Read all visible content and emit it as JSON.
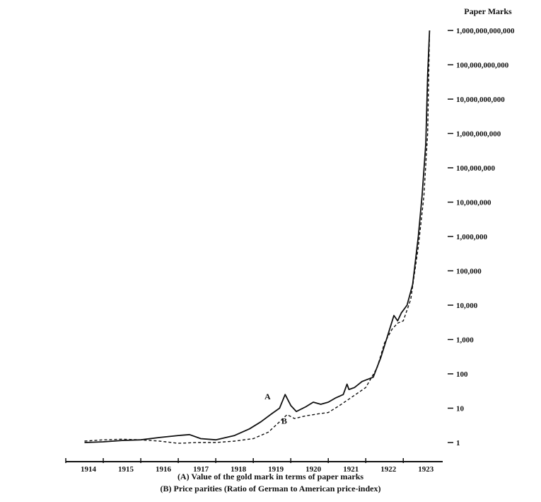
{
  "chart_data": {
    "type": "line",
    "y_scale": "log",
    "ylabel": "Paper Marks",
    "y_ticks": [
      {
        "value": 1,
        "label": "1"
      },
      {
        "value": 10,
        "label": "10"
      },
      {
        "value": 100,
        "label": "100"
      },
      {
        "value": 1000,
        "label": "1,000"
      },
      {
        "value": 10000,
        "label": "10,000"
      },
      {
        "value": 100000,
        "label": "100,000"
      },
      {
        "value": 1000000,
        "label": "1,000,000"
      },
      {
        "value": 10000000,
        "label": "10,000,000"
      },
      {
        "value": 100000000,
        "label": "100,000,000"
      },
      {
        "value": 1000000000,
        "label": "1,000,000,000"
      },
      {
        "value": 10000000000,
        "label": "10,000,000,000"
      },
      {
        "value": 100000000000,
        "label": "100,000,000,000"
      },
      {
        "value": 1000000000000,
        "label": "1,000,000,000,000"
      }
    ],
    "x_ticks": [
      {
        "value": 1914,
        "label": "1914"
      },
      {
        "value": 1915,
        "label": "1915"
      },
      {
        "value": 1916,
        "label": "1916"
      },
      {
        "value": 1917,
        "label": "1917"
      },
      {
        "value": 1918,
        "label": "1918"
      },
      {
        "value": 1919,
        "label": "1919"
      },
      {
        "value": 1920,
        "label": "1920"
      },
      {
        "value": 1921,
        "label": "1921"
      },
      {
        "value": 1922,
        "label": "1922"
      },
      {
        "value": 1923,
        "label": "1923"
      }
    ],
    "xlim": [
      1914.0,
      1923.9
    ],
    "ylim": [
      1,
      1000000000000
    ],
    "grid": false,
    "series": [
      {
        "name": "A",
        "style": "solid",
        "points": [
          [
            1914.5,
            1.0
          ],
          [
            1915.0,
            1.05
          ],
          [
            1915.5,
            1.15
          ],
          [
            1916.0,
            1.2
          ],
          [
            1916.5,
            1.4
          ],
          [
            1917.0,
            1.6
          ],
          [
            1917.3,
            1.7
          ],
          [
            1917.6,
            1.3
          ],
          [
            1918.0,
            1.2
          ],
          [
            1918.5,
            1.6
          ],
          [
            1918.9,
            2.5
          ],
          [
            1919.2,
            4
          ],
          [
            1919.5,
            7
          ],
          [
            1919.7,
            10
          ],
          [
            1919.85,
            25
          ],
          [
            1920.0,
            12
          ],
          [
            1920.15,
            8
          ],
          [
            1920.4,
            11
          ],
          [
            1920.6,
            15
          ],
          [
            1920.8,
            13
          ],
          [
            1921.0,
            15
          ],
          [
            1921.2,
            20
          ],
          [
            1921.4,
            25
          ],
          [
            1921.5,
            50
          ],
          [
            1921.55,
            35
          ],
          [
            1921.7,
            40
          ],
          [
            1921.9,
            60
          ],
          [
            1922.2,
            80
          ],
          [
            1922.4,
            300
          ],
          [
            1922.6,
            1500
          ],
          [
            1922.75,
            5000
          ],
          [
            1922.85,
            3500
          ],
          [
            1922.95,
            6000
          ],
          [
            1923.1,
            10000
          ],
          [
            1923.25,
            40000
          ],
          [
            1923.4,
            1000000
          ],
          [
            1923.5,
            15000000
          ],
          [
            1923.6,
            500000000
          ],
          [
            1923.65,
            50000000000
          ],
          [
            1923.7,
            1000000000000
          ]
        ]
      },
      {
        "name": "B",
        "style": "dashed",
        "points": [
          [
            1914.5,
            1.1
          ],
          [
            1915.0,
            1.2
          ],
          [
            1915.5,
            1.25
          ],
          [
            1916.0,
            1.2
          ],
          [
            1916.5,
            1.1
          ],
          [
            1917.0,
            0.95
          ],
          [
            1917.5,
            1.0
          ],
          [
            1918.0,
            1.0
          ],
          [
            1918.5,
            1.1
          ],
          [
            1919.0,
            1.3
          ],
          [
            1919.4,
            2
          ],
          [
            1919.7,
            4
          ],
          [
            1919.9,
            6.5
          ],
          [
            1920.1,
            5
          ],
          [
            1920.4,
            6
          ],
          [
            1920.8,
            7
          ],
          [
            1921.0,
            7.5
          ],
          [
            1921.3,
            12
          ],
          [
            1921.6,
            20
          ],
          [
            1922.0,
            40
          ],
          [
            1922.3,
            150
          ],
          [
            1922.5,
            800
          ],
          [
            1922.7,
            2000
          ],
          [
            1922.85,
            3000
          ],
          [
            1923.0,
            3500
          ],
          [
            1923.2,
            15000
          ],
          [
            1923.4,
            500000
          ],
          [
            1923.55,
            15000000
          ],
          [
            1923.65,
            1000000000
          ],
          [
            1923.7,
            1000000000000
          ]
        ]
      }
    ],
    "annotations": [
      {
        "label": "A",
        "x": 1919.3,
        "y": 18
      },
      {
        "label": "B",
        "x": 1919.75,
        "y": 3.5
      }
    ]
  },
  "captions": {
    "line_a": "(A) Value of the gold mark in terms of paper marks",
    "line_b": "(B) Price parities (Ratio of German to American price-index)"
  }
}
